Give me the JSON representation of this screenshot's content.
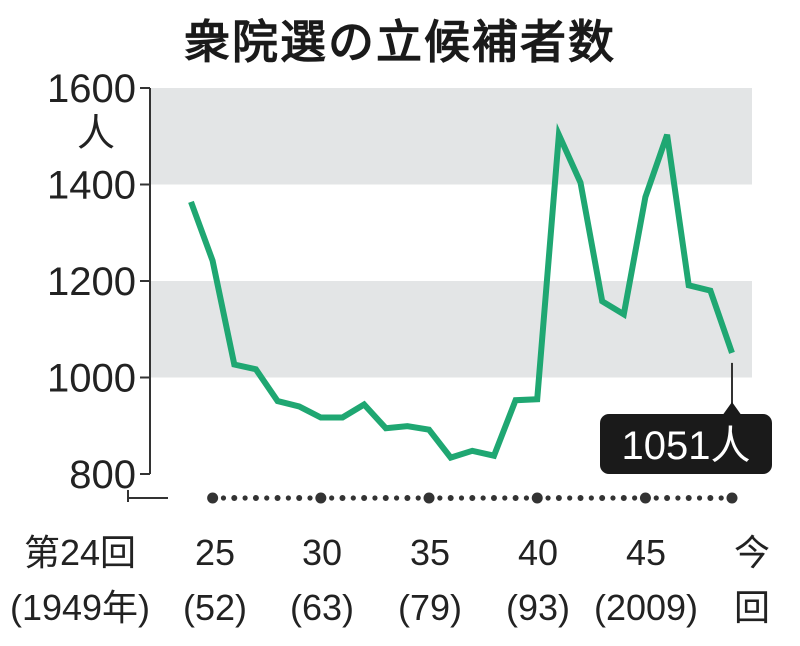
{
  "chart_data": {
    "type": "line",
    "title": "衆院選の立候補者数",
    "y_unit": "人",
    "ylim": [
      800,
      1600
    ],
    "y_ticks": [
      800,
      1000,
      1200,
      1400,
      1600
    ],
    "grid": "horizontal bands",
    "series": [
      {
        "values": [
          1364,
          1242,
          1027,
          1017,
          951,
          940,
          917,
          917,
          944,
          895,
          899,
          892,
          834,
          848,
          838,
          953,
          955,
          1503,
          1404,
          1158,
          1131,
          1374,
          1503,
          1191,
          1180,
          1051
        ]
      }
    ],
    "x_labels": [
      {
        "line1": "第24回",
        "line2": "(1949年)"
      },
      {
        "line1": "25",
        "line2": "(52)"
      },
      {
        "line1": "30",
        "line2": "(63)"
      },
      {
        "line1": "35",
        "line2": "(79)"
      },
      {
        "line1": "40",
        "line2": "(93)"
      },
      {
        "line1": "45",
        "line2": "(2009)"
      },
      {
        "line1": "今",
        "line2": "回"
      }
    ],
    "callout": "1051人",
    "colors": {
      "line": "#1fa772",
      "band": "#e3e5e6",
      "axis": "#333333",
      "callout_bg": "#1a1a1a"
    }
  }
}
